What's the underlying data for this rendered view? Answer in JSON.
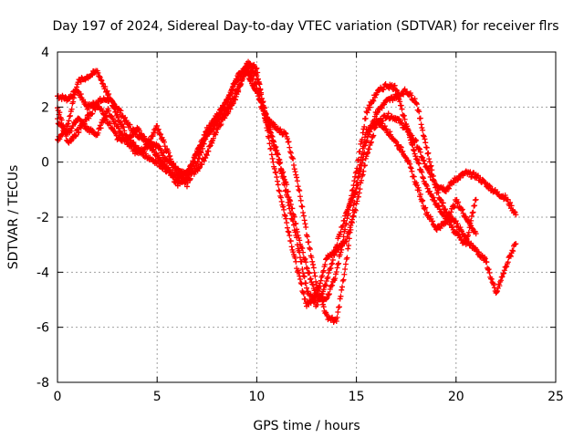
{
  "chart_data": {
    "type": "scatter",
    "title": "Day 197 of 2024, Sidereal Day-to-day VTEC variation (SDTVAR) for receiver flrs",
    "xlabel": "GPS time / hours",
    "ylabel": "SDTVAR / TECUs",
    "xlim": [
      0,
      25
    ],
    "ylim": [
      -8,
      4
    ],
    "xticks": [
      "0",
      "5",
      "10",
      "15",
      "20",
      "25"
    ],
    "yticks": [
      "-8",
      "-6",
      "-4",
      "-2",
      "0",
      "2",
      "4"
    ],
    "grid": true,
    "legend": "none",
    "marker": "plus",
    "color": "#ff0000",
    "series": [
      {
        "x": [
          0.0,
          0.5,
          1.0,
          1.5,
          2.0,
          2.5,
          3.0,
          3.5,
          4.0,
          4.5,
          5.0,
          5.5,
          6.0,
          6.5,
          7.0,
          7.5,
          8.0,
          8.5,
          9.0,
          9.5,
          10.0,
          10.5,
          11.0,
          11.5,
          12.0,
          12.5,
          13.0,
          13.5,
          14.0,
          14.5,
          15.0,
          15.5,
          16.0,
          16.5,
          17.0,
          17.5,
          18.0,
          18.5,
          19.0,
          19.5,
          20.0,
          20.5,
          21.0,
          21.5,
          22.0,
          22.5,
          23.0
        ],
        "y": [
          2.4,
          2.3,
          2.6,
          2.0,
          2.2,
          2.3,
          2.0,
          1.4,
          1.0,
          0.8,
          0.6,
          0.1,
          -0.3,
          -0.5,
          -0.3,
          0.3,
          1.2,
          1.8,
          2.4,
          3.6,
          3.4,
          1.2,
          -0.6,
          -2.2,
          -3.8,
          -5.2,
          -4.8,
          -3.5,
          -3.2,
          -2.8,
          -1.6,
          0.2,
          1.4,
          1.7,
          1.6,
          1.2,
          0.7,
          -0.2,
          -0.8,
          -1.0,
          -0.6,
          -0.4,
          -0.5,
          -0.8,
          -1.1,
          -1.3,
          -1.9
        ]
      },
      {
        "x": [
          0.0,
          0.5,
          1.0,
          1.5,
          2.0,
          2.5,
          3.0,
          3.5,
          4.0,
          4.5,
          5.0,
          5.5,
          6.0,
          6.5,
          7.0,
          7.5,
          8.0,
          8.5,
          9.0,
          9.5,
          10.0,
          10.5,
          11.0,
          11.5,
          12.0,
          12.5,
          13.0,
          13.5,
          14.0,
          14.5,
          15.0,
          15.5,
          16.0,
          16.5,
          17.0,
          17.5,
          18.0,
          18.5,
          19.0,
          19.5,
          20.0,
          20.5,
          21.0
        ],
        "y": [
          1.5,
          1.0,
          1.6,
          1.2,
          1.0,
          1.9,
          1.3,
          0.7,
          0.3,
          0.6,
          1.3,
          0.4,
          -0.4,
          -0.8,
          0.0,
          1.0,
          1.7,
          2.2,
          3.1,
          3.4,
          2.7,
          1.6,
          1.2,
          1.0,
          -0.5,
          -2.6,
          -4.4,
          -5.6,
          -5.8,
          -3.6,
          -0.8,
          1.1,
          1.5,
          1.2,
          0.7,
          0.2,
          -0.8,
          -1.8,
          -2.4,
          -2.2,
          -1.4,
          -2.0,
          -2.6
        ]
      },
      {
        "x": [
          0.0,
          0.5,
          1.0,
          1.5,
          2.0,
          2.5,
          3.0,
          3.5,
          4.0,
          4.5,
          5.0,
          5.5,
          6.0,
          6.5,
          7.0,
          7.5,
          8.0,
          8.5,
          9.0,
          9.5,
          10.0,
          10.5,
          11.0,
          11.5,
          12.0,
          12.5,
          13.0,
          13.5,
          14.0,
          14.5,
          15.0,
          15.5,
          16.0,
          16.5,
          17.0,
          17.5,
          18.0,
          18.5,
          19.0,
          19.5,
          20.0,
          20.5,
          21.0,
          21.5,
          22.0,
          22.5,
          23.0
        ],
        "y": [
          0.8,
          1.3,
          2.9,
          3.1,
          3.3,
          2.5,
          1.7,
          0.9,
          0.5,
          0.2,
          0.0,
          -0.3,
          -0.6,
          -0.4,
          0.3,
          1.2,
          1.6,
          2.2,
          3.0,
          3.5,
          3.1,
          1.6,
          0.3,
          -1.2,
          -2.8,
          -4.6,
          -5.2,
          -4.4,
          -3.0,
          -1.8,
          -1.0,
          0.8,
          1.8,
          2.2,
          2.4,
          2.6,
          2.2,
          0.6,
          -1.0,
          -1.8,
          -2.2,
          -2.8,
          -3.2,
          -3.6,
          -4.8,
          -3.8,
          -2.9
        ]
      },
      {
        "x": [
          0.0,
          0.5,
          1.0,
          1.5,
          2.0,
          2.5,
          3.0,
          3.5,
          4.0,
          4.5,
          5.0,
          5.5,
          6.0,
          6.5,
          7.0,
          7.5,
          8.0,
          8.5,
          9.0,
          9.5,
          10.0,
          10.5,
          11.0,
          11.5,
          12.0,
          12.5,
          13.0,
          13.5,
          14.0,
          14.5,
          15.0,
          15.5,
          16.0,
          16.5,
          17.0,
          17.5,
          18.0,
          18.5,
          19.0,
          19.5,
          20.0,
          20.5,
          21.0
        ],
        "y": [
          2.0,
          0.7,
          1.1,
          1.6,
          2.1,
          1.5,
          0.9,
          0.8,
          1.2,
          0.7,
          0.2,
          -0.2,
          -0.8,
          -0.6,
          0.4,
          1.0,
          1.4,
          1.9,
          2.6,
          3.3,
          2.5,
          1.5,
          0.4,
          -0.9,
          -2.4,
          -3.8,
          -4.9,
          -5.0,
          -4.0,
          -2.2,
          -0.3,
          1.8,
          2.5,
          2.8,
          2.7,
          1.3,
          0.2,
          -0.9,
          -1.5,
          -2.0,
          -2.6,
          -3.0,
          -1.3
        ]
      }
    ]
  }
}
